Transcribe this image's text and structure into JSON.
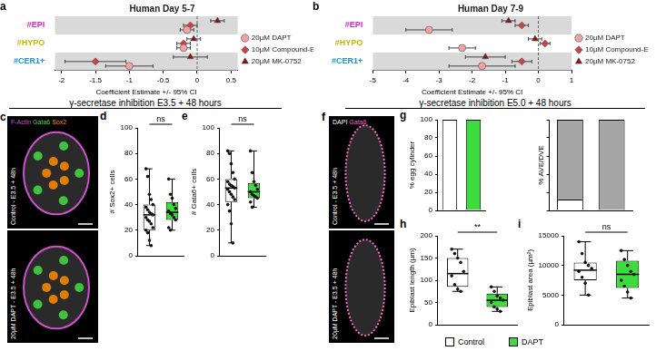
{
  "headers": [
    "γ-secretase inhibition E3.5 + 48 hours",
    "γ-secretase inhibition E5.0 + 48 hours"
  ],
  "images": [
    {
      "panel": "c",
      "channels": [
        {
          "text": "F-Actin",
          "color": "#d050d0"
        },
        {
          "text": "Gata6",
          "color": "#44dd44"
        },
        {
          "text": "Sox2",
          "color": "#ff8c00"
        }
      ],
      "labels": [
        "Control - E3.5 + 48h",
        "20µM DAPT - E3.5 + 48h"
      ]
    },
    {
      "panel": "f",
      "channels": [
        {
          "text": "DAPI",
          "color": "#ffffff"
        },
        {
          "text": "Gata6",
          "color": "#ff66cc"
        }
      ],
      "labels": [
        "Control - E3.5 + 48h",
        "20µM DAPT - E3.5 + 48h"
      ]
    }
  ],
  "legend": {
    "entries": [
      {
        "label": "Control",
        "color": "#ffffff"
      },
      {
        "label": "DAPT",
        "color": "#3ddc3d"
      }
    ]
  },
  "chart_data": [
    {
      "panel": "a",
      "type": "forest",
      "title": "Human Day 5-7",
      "categories": [
        "#EPI",
        "#HYPO",
        "#CER1+"
      ],
      "x_label": "Coefficient Estimate +/- 95% CI",
      "xlim": [
        -2.1,
        0.6
      ],
      "xticks": [
        -2,
        -1.5,
        -1,
        -0.5,
        0,
        0.5
      ],
      "legend": "right",
      "annotations": [
        {
          "x": 0,
          "line_style": "dashed"
        }
      ],
      "series": [
        {
          "name": "20µM DAPT",
          "color": "#f2a2a2",
          "marker": "circle",
          "values": [
            -0.15,
            -0.2,
            -1.0
          ],
          "ci_low": [
            -0.25,
            -0.3,
            -1.35
          ],
          "ci_high": [
            -0.05,
            -0.1,
            -0.65
          ]
        },
        {
          "name": "10µM Compound-E",
          "color": "#d0404a",
          "marker": "diamond",
          "values": [
            -0.1,
            -0.2,
            -1.5
          ],
          "ci_low": [
            -0.2,
            -0.3,
            -1.95
          ],
          "ci_high": [
            0.0,
            -0.1,
            -1.05
          ]
        },
        {
          "name": "20µM MK-0752",
          "color": "#8b1010",
          "marker": "triangle",
          "values": [
            0.3,
            -0.05,
            -0.1
          ],
          "ci_low": [
            0.2,
            -0.15,
            -0.35
          ],
          "ci_high": [
            0.4,
            0.05,
            0.15
          ]
        }
      ]
    },
    {
      "panel": "b",
      "type": "forest",
      "title": "Human Day 7-9",
      "categories": [
        "#EPI",
        "#HYPO",
        "#CER1+"
      ],
      "x_label": "Coefficient Estimate +/- 95% CI",
      "xlim": [
        -5,
        1
      ],
      "xticks": [
        -5,
        -4,
        -3,
        -2,
        -1,
        0,
        1
      ],
      "legend": "right",
      "annotations": [
        {
          "x": 0,
          "line_style": "dashed"
        }
      ],
      "series": [
        {
          "name": "20µM DAPT",
          "color": "#f2a2a2",
          "marker": "circle",
          "values": [
            -3.3,
            -2.3,
            -1.7
          ],
          "ci_low": [
            -4.0,
            -2.7,
            -2.7
          ],
          "ci_high": [
            -2.6,
            -1.9,
            -0.7
          ]
        },
        {
          "name": "10µM Compound-E",
          "color": "#d0404a",
          "marker": "diamond",
          "values": [
            -0.5,
            0.2,
            -0.5
          ],
          "ci_low": [
            -0.7,
            0.05,
            -0.8
          ],
          "ci_high": [
            -0.3,
            0.35,
            -0.2
          ]
        },
        {
          "name": "20µM MK-0752",
          "color": "#8b1010",
          "marker": "triangle",
          "values": [
            -0.9,
            -0.1,
            -1.6
          ],
          "ci_low": [
            -1.1,
            -0.3,
            -2.2
          ],
          "ci_high": [
            -0.7,
            0.1,
            -1.0
          ]
        }
      ]
    },
    {
      "panel": "d",
      "type": "box",
      "y_label": "# Sox2+ cells",
      "categories": [
        "Control",
        "DAPT"
      ],
      "colors": [
        "#ffffff",
        "#3ddc3d"
      ],
      "ylim": [
        0,
        100
      ],
      "yticks": [
        0,
        20,
        40,
        60,
        80,
        100
      ],
      "tick_labels": "y",
      "annotations": [
        {
          "text": "ns"
        }
      ],
      "boxes": [
        {
          "min": 8,
          "q1": 20,
          "median": 32,
          "q3": 40,
          "max": 68
        },
        {
          "min": 20,
          "q1": 28,
          "median": 34,
          "q3": 42,
          "max": 60
        }
      ],
      "points": [
        [
          68,
          62,
          48,
          44,
          40,
          38,
          36,
          34,
          33,
          32,
          30,
          28,
          27,
          25,
          22,
          20,
          18,
          12,
          8
        ],
        [
          60,
          48,
          45,
          40,
          37,
          35,
          33,
          32,
          30,
          28,
          22,
          20
        ]
      ]
    },
    {
      "panel": "e",
      "type": "box",
      "y_label": "# Gata6+ cells",
      "categories": [
        "Control",
        "DAPT"
      ],
      "colors": [
        "#ffffff",
        "#3ddc3d"
      ],
      "ylim": [
        0,
        100
      ],
      "yticks": [
        0,
        20,
        40,
        60,
        80,
        100
      ],
      "tick_labels": "y",
      "annotations": [
        {
          "text": "ns"
        }
      ],
      "boxes": [
        {
          "min": 10,
          "q1": 42,
          "median": 53,
          "q3": 60,
          "max": 82
        },
        {
          "min": 38,
          "q1": 45,
          "median": 50,
          "q3": 57,
          "max": 82
        }
      ],
      "points": [
        [
          82,
          80,
          72,
          65,
          60,
          58,
          56,
          55,
          54,
          53,
          52,
          50,
          48,
          46,
          44,
          40,
          35,
          25,
          10
        ],
        [
          82,
          65,
          58,
          55,
          52,
          50,
          48,
          47,
          46,
          45,
          42,
          38
        ]
      ]
    },
    {
      "panel": "g",
      "type": "bar",
      "y_label": "% egg cylinder",
      "categories": [
        "Control",
        "DAPT"
      ],
      "values": [
        100,
        100
      ],
      "colors": [
        "#ffffff",
        "#3ddc3d"
      ],
      "ylim": [
        0,
        100
      ],
      "yticks": [
        0,
        20,
        40,
        60,
        80,
        100
      ],
      "tick_labels": "y"
    },
    {
      "type": "bar",
      "stacked": true,
      "y_label": "% AVE/DVE",
      "categories": [
        "Control",
        "DAPT"
      ],
      "ylim": [
        0,
        100
      ],
      "yticks": [
        0,
        20,
        40,
        60,
        80,
        100
      ],
      "tick_labels": false,
      "series": [
        {
          "color": "#ffffff",
          "values": [
            12,
            0
          ]
        },
        {
          "color": "#a6a6a6",
          "values": [
            88,
            100
          ]
        }
      ]
    },
    {
      "panel": "h",
      "type": "box",
      "y_label": "Epiblast length (µm)",
      "categories": [
        "Control",
        "DAPT"
      ],
      "colors": [
        "#ffffff",
        "#3ddc3d"
      ],
      "ylim": [
        0,
        200
      ],
      "yticks": [
        0,
        50,
        100,
        150,
        200
      ],
      "tick_labels": "y",
      "annotations": [
        {
          "text": "**"
        }
      ],
      "boxes": [
        {
          "min": 75,
          "q1": 85,
          "median": 115,
          "q3": 150,
          "max": 170
        },
        {
          "min": 30,
          "q1": 40,
          "median": 55,
          "q3": 70,
          "max": 85
        }
      ],
      "points": [
        [
          170,
          160,
          150,
          140,
          120,
          110,
          90,
          80,
          75
        ],
        [
          85,
          75,
          65,
          60,
          55,
          50,
          40,
          35,
          30
        ]
      ]
    },
    {
      "panel": "i",
      "type": "box",
      "y_label": "Epiblast area (µm²)",
      "categories": [
        "Control",
        "DAPT"
      ],
      "colors": [
        "#ffffff",
        "#3ddc3d"
      ],
      "ylim": [
        0,
        15000
      ],
      "yticks": [
        0,
        5000,
        10000,
        15000
      ],
      "tick_labels": "y",
      "annotations": [
        {
          "text": "ns"
        }
      ],
      "boxes": [
        {
          "min": 5000,
          "q1": 7500,
          "median": 9200,
          "q3": 10500,
          "max": 14000
        },
        {
          "min": 4500,
          "q1": 6200,
          "median": 8500,
          "q3": 10800,
          "max": 12500
        }
      ],
      "points": [
        [
          14000,
          12000,
          10500,
          10000,
          9500,
          9000,
          8000,
          7000,
          5000
        ],
        [
          12500,
          11000,
          10000,
          9000,
          8500,
          7500,
          6500,
          5500,
          4500
        ]
      ]
    }
  ]
}
